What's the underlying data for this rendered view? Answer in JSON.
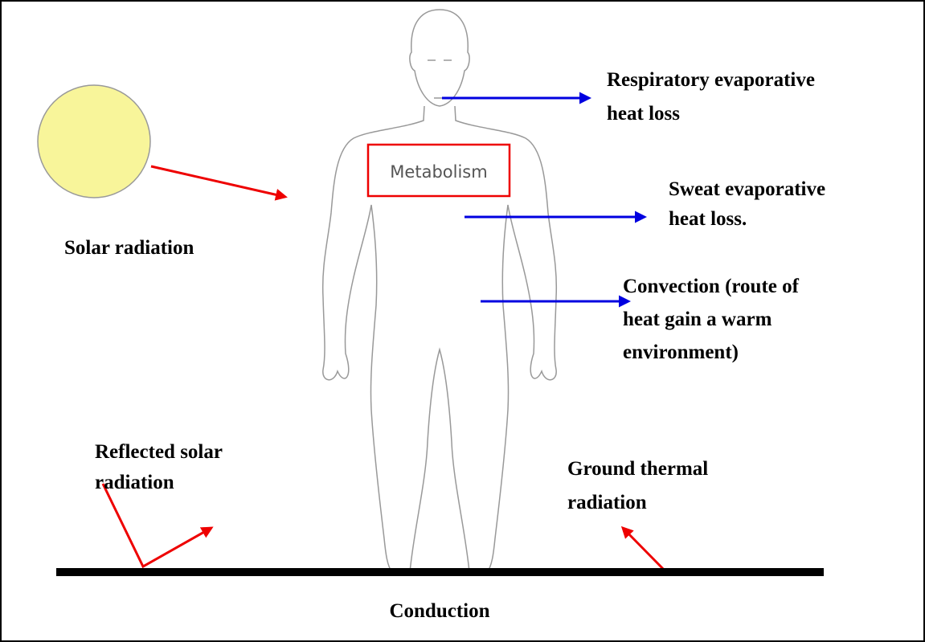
{
  "title_labels": {
    "metabolism": "Metabolism",
    "respiratory": [
      "Respiratory evaporative",
      "heat loss"
    ],
    "sweat": [
      "Sweat evaporative",
      "heat loss."
    ],
    "convection": [
      "Convection (route of",
      "heat gain a warm",
      "environment)"
    ],
    "solar": [
      "Solar radiation"
    ],
    "reflected": [
      "Reflected solar",
      "radiation"
    ],
    "ground": [
      "Ground thermal",
      "radiation"
    ],
    "conduction": [
      "Conduction"
    ]
  }
}
